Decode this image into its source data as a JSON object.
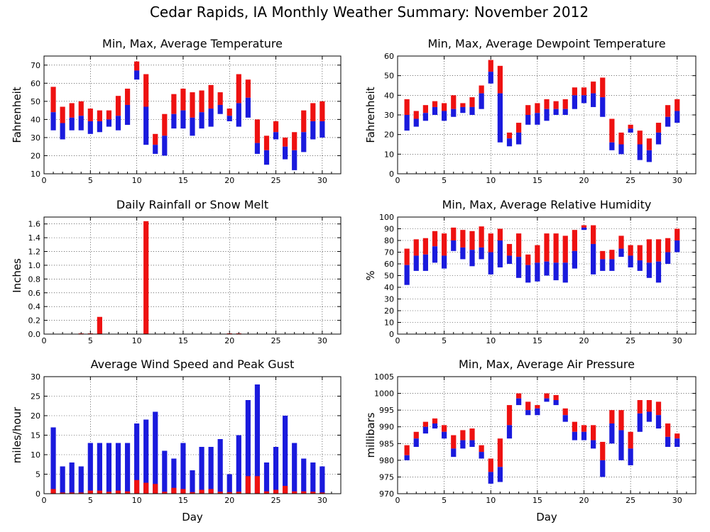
{
  "figure_title": "Cedar Rapids, IA Monthly Weather Summary: November 2012",
  "colors": {
    "red": "#ee1111",
    "blue": "#1a1add"
  },
  "chart_data": [
    {
      "id": "temperature",
      "type": "bar",
      "style": "minmaxavg",
      "title": "Min, Max, Average Temperature",
      "xlabel": "",
      "ylabel": "Fahrenheit",
      "xlim": [
        0,
        32
      ],
      "ylim": [
        10,
        75
      ],
      "xticks": [
        0,
        5,
        10,
        15,
        20,
        25,
        30
      ],
      "yticks": [
        10,
        20,
        30,
        40,
        50,
        60,
        70
      ],
      "ytick_labels": [
        "10",
        "20",
        "30",
        "40",
        "50",
        "60",
        "70"
      ],
      "grid": true,
      "days": [
        1,
        2,
        3,
        4,
        5,
        6,
        7,
        8,
        9,
        10,
        11,
        12,
        13,
        14,
        15,
        16,
        17,
        18,
        19,
        20,
        21,
        22,
        23,
        24,
        25,
        26,
        27,
        28,
        29,
        30
      ],
      "min": [
        34,
        29,
        34,
        34,
        32,
        33,
        36,
        34,
        37,
        62,
        26,
        21,
        20,
        35,
        35,
        31,
        35,
        36,
        43,
        39,
        36,
        41,
        21,
        15,
        29,
        18,
        12,
        22,
        29,
        30
      ],
      "avg": [
        44,
        38,
        41,
        42,
        39,
        39,
        40,
        42,
        48,
        67,
        47,
        26,
        31,
        43,
        45,
        41,
        44,
        46,
        48,
        42,
        49,
        52,
        27,
        23,
        33,
        25,
        23,
        33,
        39,
        39
      ],
      "max": [
        58,
        47,
        49,
        50,
        46,
        45,
        45,
        53,
        57,
        72,
        65,
        32,
        43,
        54,
        57,
        55,
        56,
        59,
        55,
        46,
        65,
        62,
        40,
        31,
        39,
        30,
        33,
        45,
        49,
        50
      ]
    },
    {
      "id": "dewpoint",
      "type": "bar",
      "style": "minmaxavg",
      "title": "Min, Max, Average Dewpoint Temperature",
      "xlabel": "",
      "ylabel": "Fahrenheit",
      "xlim": [
        0,
        32
      ],
      "ylim": [
        0,
        60
      ],
      "xticks": [
        0,
        5,
        10,
        15,
        20,
        25,
        30
      ],
      "yticks": [
        0,
        10,
        20,
        30,
        40,
        50,
        60
      ],
      "ytick_labels": [
        "0",
        "10",
        "20",
        "30",
        "40",
        "50",
        "60"
      ],
      "grid": true,
      "days": [
        1,
        2,
        3,
        4,
        5,
        6,
        7,
        8,
        9,
        10,
        11,
        12,
        13,
        14,
        15,
        16,
        17,
        18,
        19,
        20,
        21,
        22,
        23,
        24,
        25,
        26,
        27,
        28,
        29,
        30
      ],
      "min": [
        22,
        24,
        27,
        30,
        27,
        29,
        31,
        30,
        33,
        46,
        16,
        14,
        15,
        25,
        25,
        27,
        30,
        30,
        33,
        36,
        34,
        29,
        12,
        10,
        21,
        7,
        6,
        15,
        24,
        26
      ],
      "avg": [
        30,
        28,
        31,
        34,
        32,
        33,
        34,
        34,
        41,
        52,
        41,
        18,
        21,
        30,
        31,
        33,
        33,
        33,
        40,
        40,
        41,
        39,
        16,
        15,
        23,
        15,
        12,
        21,
        29,
        32
      ],
      "max": [
        38,
        32,
        35,
        37,
        36,
        40,
        36,
        39,
        45,
        58,
        55,
        21,
        26,
        35,
        36,
        38,
        37,
        38,
        44,
        44,
        47,
        49,
        28,
        21,
        25,
        22,
        18,
        26,
        35,
        38
      ]
    },
    {
      "id": "rainfall",
      "type": "bar",
      "style": "single",
      "title": "Daily Rainfall or Snow Melt",
      "xlabel": "",
      "ylabel": "Inches",
      "xlim": [
        0,
        32
      ],
      "ylim": [
        0,
        1.7
      ],
      "xticks": [
        0,
        5,
        10,
        15,
        20,
        25,
        30
      ],
      "yticks": [
        0,
        0.2,
        0.4,
        0.6,
        0.8,
        1.0,
        1.2,
        1.4,
        1.6
      ],
      "ytick_labels": [
        "0.0",
        "0.2",
        "0.4",
        "0.6",
        "0.8",
        "1.0",
        "1.2",
        "1.4",
        "1.6"
      ],
      "grid": true,
      "days": [
        1,
        2,
        3,
        4,
        5,
        6,
        7,
        8,
        9,
        10,
        11,
        12,
        13,
        14,
        15,
        16,
        17,
        18,
        19,
        20,
        21,
        22,
        23,
        24,
        25,
        26,
        27,
        28,
        29,
        30
      ],
      "values": [
        0,
        0,
        0,
        0.01,
        0.01,
        0.25,
        0,
        0,
        0,
        0,
        1.64,
        0,
        0,
        0,
        0,
        0,
        0,
        0,
        0,
        0.01,
        0.01,
        0,
        0,
        0,
        0,
        0,
        0,
        0,
        0,
        0
      ]
    },
    {
      "id": "humidity",
      "type": "bar",
      "style": "minmaxavg",
      "title": "Min, Max, Average Relative Humidity",
      "xlabel": "",
      "ylabel": "%",
      "xlim": [
        0,
        32
      ],
      "ylim": [
        0,
        100
      ],
      "xticks": [
        0,
        5,
        10,
        15,
        20,
        25,
        30
      ],
      "yticks": [
        0,
        10,
        20,
        30,
        40,
        50,
        60,
        70,
        80,
        90,
        100
      ],
      "ytick_labels": [
        "0",
        "10",
        "20",
        "30",
        "40",
        "50",
        "60",
        "70",
        "80",
        "90",
        "100"
      ],
      "grid": true,
      "days": [
        1,
        2,
        3,
        4,
        5,
        6,
        7,
        8,
        9,
        10,
        11,
        12,
        13,
        14,
        15,
        16,
        17,
        18,
        19,
        20,
        21,
        22,
        23,
        24,
        25,
        26,
        27,
        28,
        29,
        30
      ],
      "min": [
        42,
        54,
        54,
        61,
        56,
        71,
        64,
        58,
        64,
        51,
        57,
        60,
        48,
        44,
        45,
        50,
        46,
        44,
        56,
        89,
        51,
        54,
        54,
        66,
        57,
        54,
        48,
        44,
        60,
        70
      ],
      "avg": [
        59,
        67,
        68,
        75,
        67,
        80,
        74,
        72,
        74,
        70,
        80,
        67,
        66,
        59,
        61,
        62,
        61,
        61,
        71,
        91,
        77,
        64,
        64,
        73,
        67,
        63,
        61,
        62,
        70,
        80
      ],
      "max": [
        73,
        81,
        82,
        88,
        86,
        91,
        89,
        88,
        92,
        86,
        90,
        77,
        86,
        68,
        76,
        86,
        86,
        84,
        89,
        93,
        93,
        71,
        72,
        84,
        76,
        76,
        81,
        81,
        82,
        90
      ]
    },
    {
      "id": "wind",
      "type": "bar",
      "style": "gust",
      "title": "Average Wind Speed and Peak Gust",
      "xlabel": "Day",
      "ylabel": "miles/hour",
      "xlim": [
        0,
        32
      ],
      "ylim": [
        0,
        30
      ],
      "xticks": [
        0,
        5,
        10,
        15,
        20,
        25,
        30
      ],
      "yticks": [
        0,
        5,
        10,
        15,
        20,
        25,
        30
      ],
      "ytick_labels": [
        "0",
        "5",
        "10",
        "15",
        "20",
        "25",
        "30"
      ],
      "grid": true,
      "days": [
        1,
        2,
        3,
        4,
        5,
        6,
        7,
        8,
        9,
        10,
        11,
        12,
        13,
        14,
        15,
        16,
        17,
        18,
        19,
        20,
        21,
        22,
        23,
        24,
        25,
        26,
        27,
        28,
        29,
        30
      ],
      "average": [
        1.2,
        0.3,
        0.3,
        0.3,
        0.8,
        0.8,
        0.5,
        0.8,
        0.6,
        3.5,
        2.8,
        2.5,
        0.5,
        1.5,
        1.2,
        0.4,
        1.0,
        1.2,
        0.5,
        0.4,
        0.5,
        4.5,
        4.5,
        0.6,
        1.0,
        2.0,
        0.6,
        0.6,
        0.5,
        0.3
      ],
      "gust": [
        17,
        7,
        8,
        7,
        13,
        13,
        13,
        13,
        13,
        18,
        19,
        21,
        11,
        9,
        13,
        6,
        12,
        12,
        14,
        5,
        15,
        24,
        28,
        8,
        12,
        20,
        13,
        9,
        8,
        7
      ]
    },
    {
      "id": "pressure",
      "type": "bar",
      "style": "minmaxavg",
      "title": "Min, Max, Average Air Pressure",
      "xlabel": "Day",
      "ylabel": "millibars",
      "xlim": [
        0,
        32
      ],
      "ylim": [
        970,
        1005
      ],
      "xticks": [
        0,
        5,
        10,
        15,
        20,
        25,
        30
      ],
      "yticks": [
        970,
        975,
        980,
        985,
        990,
        995,
        1000,
        1005
      ],
      "ytick_labels": [
        "970",
        "975",
        "980",
        "985",
        "990",
        "995",
        "1000",
        "1005"
      ],
      "grid": true,
      "days": [
        1,
        2,
        3,
        4,
        5,
        6,
        7,
        8,
        9,
        10,
        11,
        12,
        13,
        14,
        15,
        16,
        17,
        18,
        19,
        20,
        21,
        22,
        23,
        24,
        25,
        26,
        27,
        28,
        29,
        30
      ],
      "min": [
        980,
        984,
        988,
        989.5,
        986.5,
        981,
        983.5,
        984,
        980.5,
        973,
        973.5,
        986.5,
        996.5,
        993.5,
        993.5,
        997.5,
        996.5,
        991.5,
        986,
        986,
        983.5,
        975,
        985,
        980,
        978.5,
        988.5,
        991.5,
        989.5,
        984,
        984
      ],
      "avg": [
        981.5,
        986.5,
        990,
        991,
        988.5,
        983.5,
        986,
        986,
        982.5,
        976.5,
        978,
        990.5,
        998.5,
        995,
        995.5,
        998.5,
        998,
        993.5,
        988.5,
        988.5,
        986,
        980,
        991,
        989,
        983.5,
        994,
        994.5,
        993.5,
        987,
        986.5
      ],
      "max": [
        984.5,
        988.5,
        991.5,
        992.5,
        990.5,
        987.5,
        989,
        989.5,
        984.5,
        980.5,
        986.5,
        996.5,
        1000,
        997.5,
        996.5,
        1000,
        999.5,
        995.5,
        991.5,
        990.5,
        990.5,
        985.5,
        995,
        995,
        988.5,
        998,
        998,
        997.5,
        991,
        988
      ]
    }
  ]
}
